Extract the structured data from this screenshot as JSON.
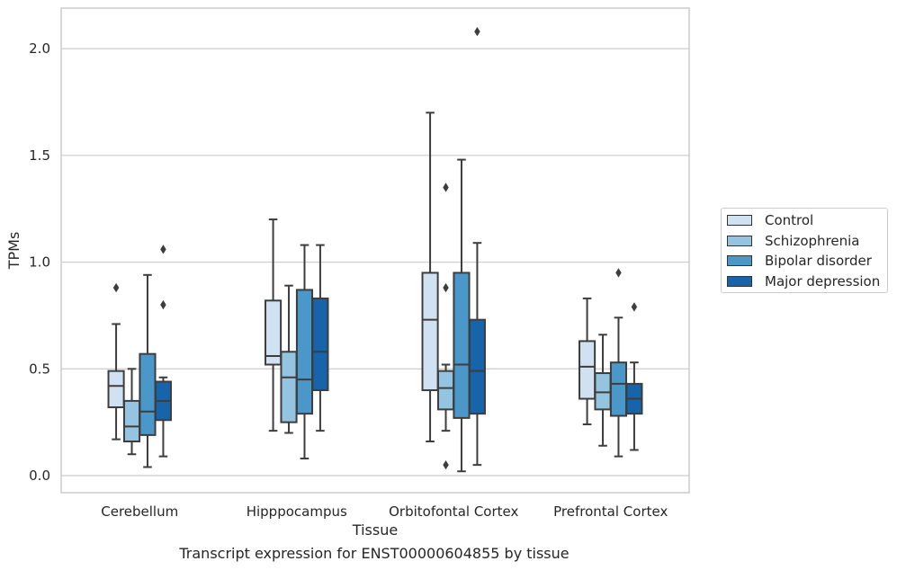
{
  "caption": "Transcript expression for ENST00000604855 by tissue",
  "chart_data": {
    "type": "box",
    "xlabel": "Tissue",
    "ylabel": "TPMs",
    "ylim": [
      -0.08,
      2.19
    ],
    "yticks": [
      0.0,
      0.5,
      1.0,
      1.5,
      2.0
    ],
    "ytick_labels": [
      "0.0",
      "0.5",
      "1.0",
      "1.5",
      "2.0"
    ],
    "grid": "horizontal",
    "legend_position": "right",
    "categories": [
      "Cerebellum",
      "Hipppocampus",
      "Orbitofontal Cortex",
      "Prefrontal Cortex"
    ],
    "series": [
      {
        "name": "Control",
        "color": "#d0e1f2",
        "boxes": [
          {
            "whisker_low": 0.17,
            "q1": 0.32,
            "median": 0.42,
            "q3": 0.49,
            "whisker_high": 0.71,
            "outliers": [
              0.88
            ]
          },
          {
            "whisker_low": 0.21,
            "q1": 0.52,
            "median": 0.56,
            "q3": 0.82,
            "whisker_high": 1.2,
            "outliers": []
          },
          {
            "whisker_low": 0.16,
            "q1": 0.4,
            "median": 0.73,
            "q3": 0.95,
            "whisker_high": 1.7,
            "outliers": []
          },
          {
            "whisker_low": 0.24,
            "q1": 0.36,
            "median": 0.51,
            "q3": 0.63,
            "whisker_high": 0.83,
            "outliers": []
          }
        ]
      },
      {
        "name": "Schizophrenia",
        "color": "#94c4df",
        "boxes": [
          {
            "whisker_low": 0.1,
            "q1": 0.16,
            "median": 0.23,
            "q3": 0.35,
            "whisker_high": 0.5,
            "outliers": []
          },
          {
            "whisker_low": 0.2,
            "q1": 0.25,
            "median": 0.46,
            "q3": 0.58,
            "whisker_high": 0.89,
            "outliers": []
          },
          {
            "whisker_low": 0.21,
            "q1": 0.31,
            "median": 0.41,
            "q3": 0.49,
            "whisker_high": 0.52,
            "outliers": [
              0.05,
              0.88,
              1.35
            ]
          },
          {
            "whisker_low": 0.14,
            "q1": 0.31,
            "median": 0.39,
            "q3": 0.48,
            "whisker_high": 0.66,
            "outliers": []
          }
        ]
      },
      {
        "name": "Bipolar disorder",
        "color": "#4a98c9",
        "boxes": [
          {
            "whisker_low": 0.04,
            "q1": 0.19,
            "median": 0.3,
            "q3": 0.57,
            "whisker_high": 0.94,
            "outliers": []
          },
          {
            "whisker_low": 0.08,
            "q1": 0.29,
            "median": 0.45,
            "q3": 0.87,
            "whisker_high": 1.08,
            "outliers": []
          },
          {
            "whisker_low": 0.02,
            "q1": 0.27,
            "median": 0.52,
            "q3": 0.95,
            "whisker_high": 1.48,
            "outliers": []
          },
          {
            "whisker_low": 0.09,
            "q1": 0.28,
            "median": 0.43,
            "q3": 0.53,
            "whisker_high": 0.74,
            "outliers": [
              0.95
            ]
          }
        ]
      },
      {
        "name": "Major depression",
        "color": "#1764ab",
        "boxes": [
          {
            "whisker_low": 0.09,
            "q1": 0.26,
            "median": 0.35,
            "q3": 0.44,
            "whisker_high": 0.46,
            "outliers": [
              0.8,
              1.06
            ]
          },
          {
            "whisker_low": 0.21,
            "q1": 0.4,
            "median": 0.58,
            "q3": 0.83,
            "whisker_high": 1.08,
            "outliers": []
          },
          {
            "whisker_low": 0.05,
            "q1": 0.29,
            "median": 0.49,
            "q3": 0.73,
            "whisker_high": 1.09,
            "outliers": [
              2.08
            ]
          },
          {
            "whisker_low": 0.12,
            "q1": 0.29,
            "median": 0.36,
            "q3": 0.43,
            "whisker_high": 0.53,
            "outliers": [
              0.79
            ]
          }
        ]
      }
    ]
  }
}
